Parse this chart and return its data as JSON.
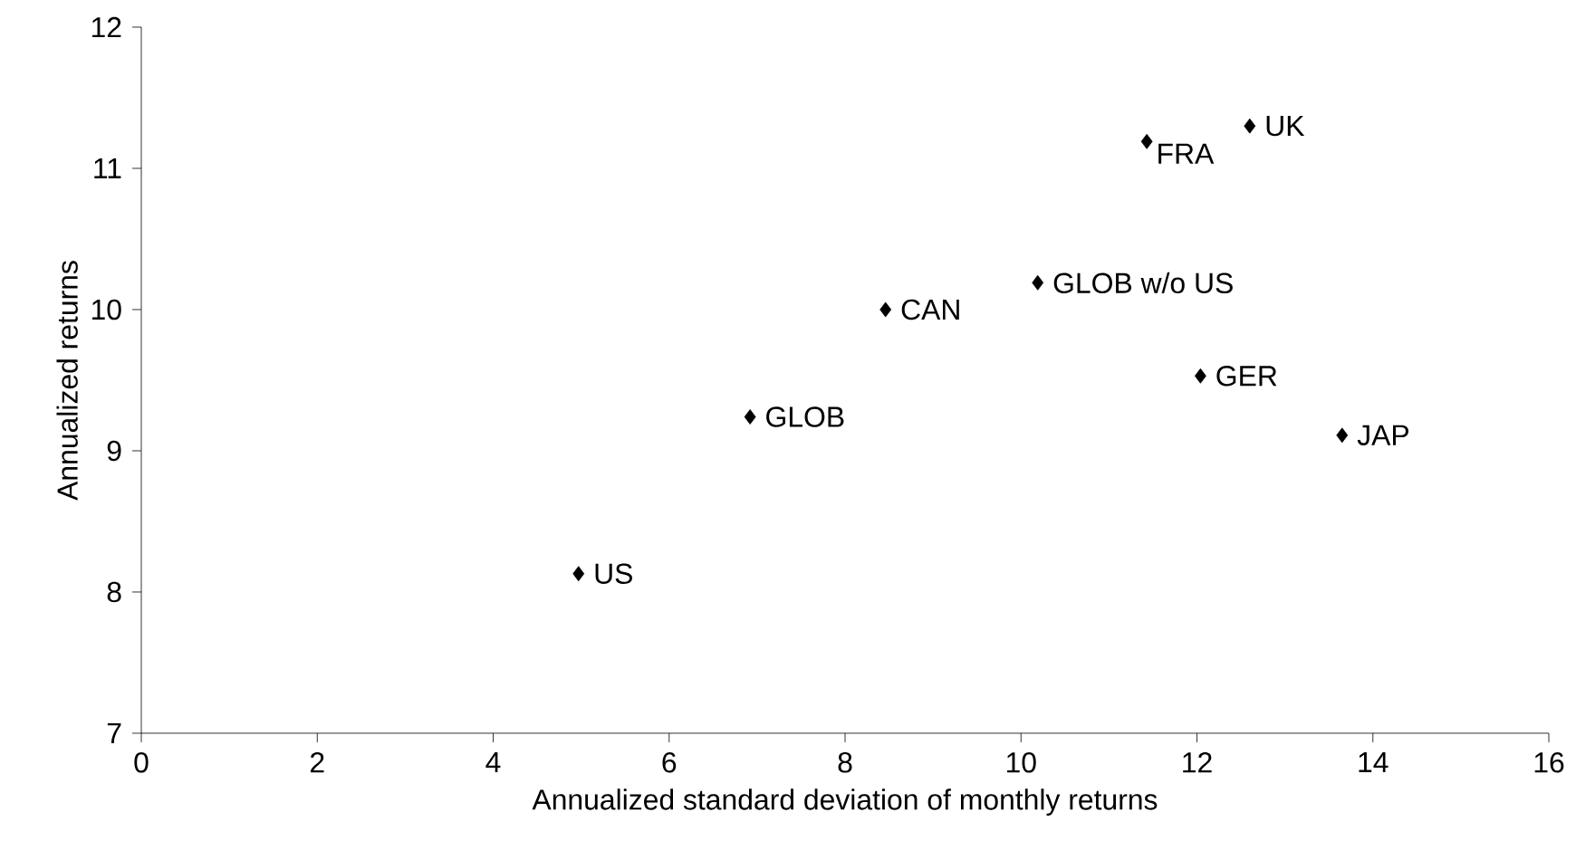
{
  "chart_data": {
    "type": "scatter",
    "xlabel": "Annualized standard deviation of monthly returns",
    "ylabel": "Annualized returns",
    "xlim": [
      0,
      16
    ],
    "ylim": [
      7,
      12
    ],
    "xticks": [
      0,
      2,
      4,
      6,
      8,
      10,
      12,
      14,
      16
    ],
    "yticks": [
      7,
      8,
      9,
      10,
      11,
      12
    ],
    "marker": "diamond",
    "grid": false,
    "legend": false,
    "series": [
      {
        "name": "US",
        "color": "#000000",
        "x": [
          4.97
        ],
        "values": [
          8.13
        ]
      },
      {
        "name": "GLOB",
        "color": "#000000",
        "x": [
          6.92
        ],
        "values": [
          9.24
        ]
      },
      {
        "name": "CAN",
        "color": "#000000",
        "x": [
          8.46
        ],
        "values": [
          10.0
        ]
      },
      {
        "name": "GLOB w/o US",
        "color": "#000000",
        "x": [
          10.19
        ],
        "values": [
          10.19
        ]
      },
      {
        "name": "FRA",
        "color": "#000000",
        "x": [
          11.43
        ],
        "values": [
          11.19
        ]
      },
      {
        "name": "UK",
        "color": "#000000",
        "x": [
          12.6
        ],
        "values": [
          11.3
        ]
      },
      {
        "name": "GER",
        "color": "#000000",
        "x": [
          12.04
        ],
        "values": [
          9.53
        ]
      },
      {
        "name": "JAP",
        "color": "#000000",
        "x": [
          13.65
        ],
        "values": [
          9.11
        ]
      }
    ]
  }
}
